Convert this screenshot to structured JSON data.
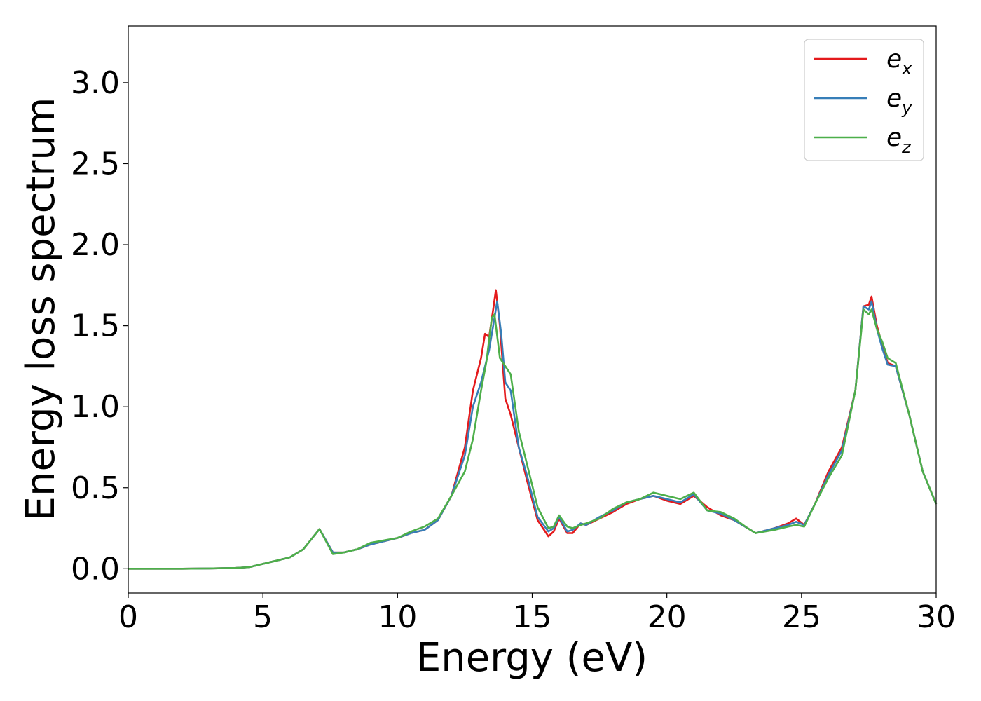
{
  "chart_data": {
    "type": "line",
    "title": "",
    "xlabel": "Energy (eV)",
    "ylabel": "Energy loss spectrum",
    "xlim": [
      0,
      30
    ],
    "ylim": [
      -0.15,
      3.35
    ],
    "xticks": [
      0,
      5,
      10,
      15,
      20,
      25,
      30
    ],
    "xtick_labels": [
      "0",
      "5",
      "10",
      "15",
      "20",
      "25",
      "30"
    ],
    "yticks": [
      0.0,
      0.5,
      1.0,
      1.5,
      2.0,
      2.5,
      3.0
    ],
    "ytick_labels": [
      "0.0",
      "0.5",
      "1.0",
      "1.5",
      "2.0",
      "2.5",
      "3.0"
    ],
    "grid": false,
    "legend_position": "top-right",
    "series": [
      {
        "name": "e_x",
        "label_base": "e",
        "label_sub": "x",
        "color": "#e41a1c",
        "points": [
          [
            0,
            0
          ],
          [
            2,
            0
          ],
          [
            3,
            0.002
          ],
          [
            4,
            0.005
          ],
          [
            4.5,
            0.01
          ],
          [
            5,
            0.03
          ],
          [
            5.5,
            0.05
          ],
          [
            6,
            0.07
          ],
          [
            6.5,
            0.12
          ],
          [
            7.1,
            0.245
          ],
          [
            7.6,
            0.1
          ],
          [
            8,
            0.1
          ],
          [
            8.5,
            0.12
          ],
          [
            9,
            0.15
          ],
          [
            10,
            0.19
          ],
          [
            10.5,
            0.22
          ],
          [
            11,
            0.24
          ],
          [
            11.5,
            0.3
          ],
          [
            12,
            0.45
          ],
          [
            12.5,
            0.75
          ],
          [
            12.8,
            1.1
          ],
          [
            13.1,
            1.3
          ],
          [
            13.25,
            1.45
          ],
          [
            13.4,
            1.43
          ],
          [
            13.55,
            1.6
          ],
          [
            13.65,
            1.72
          ],
          [
            13.8,
            1.5
          ],
          [
            14,
            1.05
          ],
          [
            14.2,
            0.95
          ],
          [
            14.5,
            0.75
          ],
          [
            14.8,
            0.55
          ],
          [
            15.2,
            0.3
          ],
          [
            15.6,
            0.2
          ],
          [
            15.8,
            0.23
          ],
          [
            16,
            0.31
          ],
          [
            16.3,
            0.22
          ],
          [
            16.5,
            0.22
          ],
          [
            16.8,
            0.28
          ],
          [
            17,
            0.27
          ],
          [
            17.5,
            0.31
          ],
          [
            18,
            0.35
          ],
          [
            18.5,
            0.4
          ],
          [
            19,
            0.43
          ],
          [
            19.5,
            0.45
          ],
          [
            20,
            0.42
          ],
          [
            20.5,
            0.4
          ],
          [
            21,
            0.45
          ],
          [
            21.5,
            0.38
          ],
          [
            22,
            0.33
          ],
          [
            22.5,
            0.3
          ],
          [
            23,
            0.25
          ],
          [
            23.3,
            0.22
          ],
          [
            24,
            0.25
          ],
          [
            24.5,
            0.28
          ],
          [
            24.8,
            0.31
          ],
          [
            25.1,
            0.27
          ],
          [
            25.5,
            0.4
          ],
          [
            26,
            0.6
          ],
          [
            26.5,
            0.75
          ],
          [
            27,
            1.1
          ],
          [
            27.3,
            1.62
          ],
          [
            27.5,
            1.63
          ],
          [
            27.6,
            1.68
          ],
          [
            27.8,
            1.5
          ],
          [
            28,
            1.38
          ],
          [
            28.2,
            1.27
          ],
          [
            28.5,
            1.25
          ],
          [
            29,
            0.95
          ],
          [
            29.5,
            0.6
          ],
          [
            30,
            0.4
          ]
        ]
      },
      {
        "name": "e_y",
        "label_base": "e",
        "label_sub": "y",
        "color": "#377eb8",
        "points": [
          [
            0,
            0
          ],
          [
            2,
            0
          ],
          [
            3,
            0.002
          ],
          [
            4,
            0.005
          ],
          [
            4.5,
            0.01
          ],
          [
            5,
            0.03
          ],
          [
            5.5,
            0.05
          ],
          [
            6,
            0.07
          ],
          [
            6.5,
            0.12
          ],
          [
            7.1,
            0.245
          ],
          [
            7.6,
            0.1
          ],
          [
            8,
            0.1
          ],
          [
            8.5,
            0.12
          ],
          [
            9,
            0.15
          ],
          [
            10,
            0.19
          ],
          [
            10.5,
            0.22
          ],
          [
            11,
            0.24
          ],
          [
            11.5,
            0.3
          ],
          [
            12,
            0.45
          ],
          [
            12.5,
            0.7
          ],
          [
            12.8,
            1.0
          ],
          [
            13.1,
            1.15
          ],
          [
            13.4,
            1.35
          ],
          [
            13.55,
            1.5
          ],
          [
            13.7,
            1.65
          ],
          [
            13.85,
            1.45
          ],
          [
            14,
            1.15
          ],
          [
            14.2,
            1.1
          ],
          [
            14.5,
            0.75
          ],
          [
            14.8,
            0.58
          ],
          [
            15.2,
            0.32
          ],
          [
            15.6,
            0.23
          ],
          [
            15.8,
            0.25
          ],
          [
            16,
            0.32
          ],
          [
            16.3,
            0.23
          ],
          [
            16.5,
            0.24
          ],
          [
            16.8,
            0.28
          ],
          [
            17,
            0.27
          ],
          [
            17.5,
            0.32
          ],
          [
            18,
            0.36
          ],
          [
            18.5,
            0.41
          ],
          [
            19,
            0.43
          ],
          [
            19.5,
            0.45
          ],
          [
            20,
            0.43
          ],
          [
            20.5,
            0.41
          ],
          [
            21,
            0.46
          ],
          [
            21.5,
            0.36
          ],
          [
            22,
            0.34
          ],
          [
            22.5,
            0.3
          ],
          [
            23,
            0.25
          ],
          [
            23.3,
            0.22
          ],
          [
            24,
            0.25
          ],
          [
            24.5,
            0.27
          ],
          [
            24.8,
            0.29
          ],
          [
            25.1,
            0.27
          ],
          [
            25.5,
            0.4
          ],
          [
            26,
            0.58
          ],
          [
            26.5,
            0.73
          ],
          [
            27,
            1.1
          ],
          [
            27.3,
            1.62
          ],
          [
            27.5,
            1.6
          ],
          [
            27.6,
            1.65
          ],
          [
            27.8,
            1.48
          ],
          [
            28,
            1.36
          ],
          [
            28.2,
            1.26
          ],
          [
            28.5,
            1.25
          ],
          [
            29,
            0.95
          ],
          [
            29.5,
            0.6
          ],
          [
            30,
            0.4
          ]
        ]
      },
      {
        "name": "e_z",
        "label_base": "e",
        "label_sub": "z",
        "color": "#4daf4a",
        "points": [
          [
            0,
            0
          ],
          [
            2,
            0
          ],
          [
            3,
            0.002
          ],
          [
            4,
            0.005
          ],
          [
            4.5,
            0.01
          ],
          [
            5,
            0.03
          ],
          [
            5.5,
            0.05
          ],
          [
            6,
            0.07
          ],
          [
            6.5,
            0.12
          ],
          [
            7.1,
            0.245
          ],
          [
            7.6,
            0.09
          ],
          [
            8,
            0.1
          ],
          [
            8.5,
            0.12
          ],
          [
            9,
            0.16
          ],
          [
            10,
            0.19
          ],
          [
            10.5,
            0.23
          ],
          [
            11,
            0.26
          ],
          [
            11.5,
            0.31
          ],
          [
            12,
            0.45
          ],
          [
            12.5,
            0.6
          ],
          [
            12.8,
            0.8
          ],
          [
            13.1,
            1.1
          ],
          [
            13.3,
            1.28
          ],
          [
            13.5,
            1.55
          ],
          [
            13.6,
            1.57
          ],
          [
            13.8,
            1.3
          ],
          [
            14,
            1.25
          ],
          [
            14.2,
            1.2
          ],
          [
            14.5,
            0.85
          ],
          [
            14.8,
            0.65
          ],
          [
            15.2,
            0.38
          ],
          [
            15.6,
            0.25
          ],
          [
            15.8,
            0.26
          ],
          [
            16,
            0.33
          ],
          [
            16.3,
            0.26
          ],
          [
            16.5,
            0.25
          ],
          [
            16.8,
            0.27
          ],
          [
            17,
            0.28
          ],
          [
            17.5,
            0.31
          ],
          [
            18,
            0.37
          ],
          [
            18.5,
            0.41
          ],
          [
            19,
            0.43
          ],
          [
            19.5,
            0.47
          ],
          [
            20,
            0.45
          ],
          [
            20.5,
            0.43
          ],
          [
            21,
            0.47
          ],
          [
            21.5,
            0.36
          ],
          [
            22,
            0.35
          ],
          [
            22.5,
            0.31
          ],
          [
            23,
            0.25
          ],
          [
            23.3,
            0.22
          ],
          [
            24,
            0.24
          ],
          [
            24.5,
            0.26
          ],
          [
            24.8,
            0.27
          ],
          [
            25.1,
            0.26
          ],
          [
            25.5,
            0.4
          ],
          [
            26,
            0.56
          ],
          [
            26.5,
            0.7
          ],
          [
            27,
            1.1
          ],
          [
            27.3,
            1.6
          ],
          [
            27.5,
            1.57
          ],
          [
            27.6,
            1.6
          ],
          [
            27.8,
            1.48
          ],
          [
            28,
            1.4
          ],
          [
            28.2,
            1.3
          ],
          [
            28.5,
            1.27
          ],
          [
            29,
            0.95
          ],
          [
            29.5,
            0.6
          ],
          [
            30,
            0.4
          ]
        ]
      }
    ]
  }
}
